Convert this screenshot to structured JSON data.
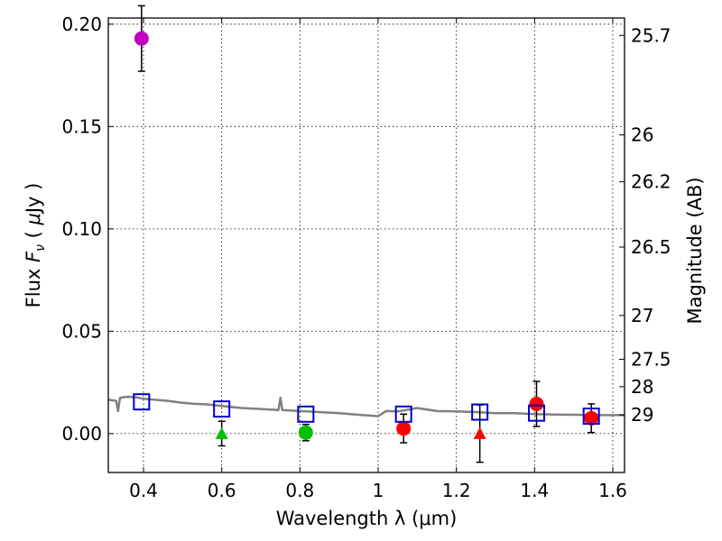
{
  "chart_data": {
    "type": "scatter",
    "xlabel": "Wavelength  λ (μm)",
    "ylabel": "Flux  F_ν  ( μJy )",
    "ylabel_parts": {
      "pre": "Flux  ",
      "f": "F",
      "nu": "ν",
      "open": "  ( ",
      "mu": "μ",
      "unit": "Jy )"
    },
    "y2label": "Magnitude (AB)",
    "xlim": [
      0.31,
      1.63
    ],
    "ylim": [
      -0.019,
      0.203
    ],
    "grid": true,
    "x_ticks": [
      0.4,
      0.6,
      0.8,
      1.0,
      1.2,
      1.4,
      1.6
    ],
    "x_tick_labels": [
      "0.4",
      "0.6",
      "0.8",
      "1",
      "1.2",
      "1.4",
      "1.6"
    ],
    "y_ticks": [
      0.0,
      0.05,
      0.1,
      0.15,
      0.2
    ],
    "y_tick_labels": [
      "0.00",
      "0.05",
      "0.10",
      "0.15",
      "0.20"
    ],
    "mag_ticks": [
      {
        "label": "25.7",
        "flux": 0.1945
      },
      {
        "label": "26",
        "flux": 0.1459
      },
      {
        "label": "26.2",
        "flux": 0.123
      },
      {
        "label": "26.5",
        "flux": 0.0911
      },
      {
        "label": "27",
        "flux": 0.0577
      },
      {
        "label": "27.5",
        "flux": 0.0363
      },
      {
        "label": "28",
        "flux": 0.0229
      },
      {
        "label": "29",
        "flux": 0.0091
      }
    ],
    "model_sed": {
      "color": "#808080",
      "points": [
        [
          0.31,
          0.0165
        ],
        [
          0.33,
          0.016
        ],
        [
          0.335,
          0.011
        ],
        [
          0.34,
          0.0175
        ],
        [
          0.36,
          0.018
        ],
        [
          0.38,
          0.0178
        ],
        [
          0.4,
          0.017
        ],
        [
          0.43,
          0.0165
        ],
        [
          0.46,
          0.016
        ],
        [
          0.5,
          0.015
        ],
        [
          0.53,
          0.0145
        ],
        [
          0.56,
          0.0143
        ],
        [
          0.6,
          0.0135
        ],
        [
          0.65,
          0.0125
        ],
        [
          0.7,
          0.012
        ],
        [
          0.745,
          0.0115
        ],
        [
          0.75,
          0.0175
        ],
        [
          0.755,
          0.0115
        ],
        [
          0.8,
          0.011
        ],
        [
          0.85,
          0.0105
        ],
        [
          0.9,
          0.01
        ],
        [
          0.95,
          0.0092
        ],
        [
          1.0,
          0.0085
        ],
        [
          1.02,
          0.011
        ],
        [
          1.05,
          0.0108
        ],
        [
          1.1,
          0.0125
        ],
        [
          1.15,
          0.011
        ],
        [
          1.2,
          0.0108
        ],
        [
          1.25,
          0.0105
        ],
        [
          1.3,
          0.01
        ],
        [
          1.35,
          0.01
        ],
        [
          1.4,
          0.0095
        ],
        [
          1.45,
          0.0093
        ],
        [
          1.5,
          0.0092
        ],
        [
          1.55,
          0.009
        ],
        [
          1.6,
          0.009
        ],
        [
          1.63,
          0.009
        ]
      ]
    },
    "model_photometry": {
      "marker": "open-square",
      "color": "#0000cc",
      "points": [
        [
          0.395,
          0.0155
        ],
        [
          0.6,
          0.012
        ],
        [
          0.815,
          0.0095
        ],
        [
          1.065,
          0.0095
        ],
        [
          1.26,
          0.0105
        ],
        [
          1.405,
          0.01
        ],
        [
          1.545,
          0.0085
        ]
      ]
    },
    "observed": [
      {
        "x": 0.395,
        "y": 0.193,
        "err": 0.016,
        "marker": "circle",
        "color": "#bf00bf"
      },
      {
        "x": 0.815,
        "y": 0.0005,
        "err": 0.004,
        "marker": "circle",
        "color": "#00bf00"
      },
      {
        "x": 1.065,
        "y": 0.0025,
        "err": 0.007,
        "marker": "circle",
        "color": "#ff0000"
      },
      {
        "x": 1.405,
        "y": 0.0145,
        "err": 0.011,
        "marker": "circle",
        "color": "#ff0000"
      },
      {
        "x": 1.545,
        "y": 0.0075,
        "err": 0.007,
        "marker": "circle",
        "color": "#ff0000"
      }
    ],
    "upper_limits": [
      {
        "x": 0.6,
        "y": 0.0,
        "err": 0.006,
        "marker": "triangle",
        "color": "#00bf00"
      },
      {
        "x": 1.26,
        "y": 0.0,
        "err": 0.014,
        "marker": "triangle",
        "color": "#ff0000"
      }
    ]
  }
}
